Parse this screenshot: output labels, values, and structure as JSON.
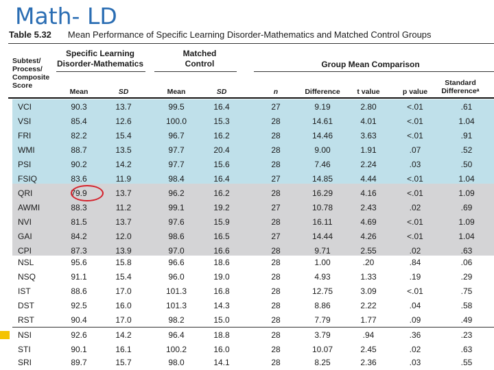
{
  "slide": {
    "title": "Math- LD"
  },
  "table": {
    "number": "Table 5.32",
    "caption": "Mean Performance of Specific Learning Disorder-Mathematics and Matched Control Groups",
    "group_headers": {
      "sld": "Specific Learning Disorder-Mathematics",
      "control": "Matched Control",
      "comparison": "Group Mean Comparison"
    },
    "columns": {
      "name": "Subtest/ Process/ Composite Score",
      "mean1": "Mean",
      "sd1": "SD",
      "mean2": "Mean",
      "sd2": "SD",
      "n": "n",
      "diff": "Difference",
      "t": "t value",
      "p": "p value",
      "std": "Standard Differenceᵃ"
    },
    "rows": [
      {
        "name": "VCI",
        "m1": "90.3",
        "sd1": "13.7",
        "m2": "99.5",
        "sd2": "16.4",
        "n": "27",
        "diff": "9.19",
        "t": "2.80",
        "p": "<.01",
        "std": ".61"
      },
      {
        "name": "VSI",
        "m1": "85.4",
        "sd1": "12.6",
        "m2": "100.0",
        "sd2": "15.3",
        "n": "28",
        "diff": "14.61",
        "t": "4.01",
        "p": "<.01",
        "std": "1.04"
      },
      {
        "name": "FRI",
        "m1": "82.2",
        "sd1": "15.4",
        "m2": "96.7",
        "sd2": "16.2",
        "n": "28",
        "diff": "14.46",
        "t": "3.63",
        "p": "<.01",
        "std": ".91"
      },
      {
        "name": "WMI",
        "m1": "88.7",
        "sd1": "13.5",
        "m2": "97.7",
        "sd2": "20.4",
        "n": "28",
        "diff": "9.00",
        "t": "1.91",
        "p": ".07",
        "std": ".52"
      },
      {
        "name": "PSI",
        "m1": "90.2",
        "sd1": "14.2",
        "m2": "97.7",
        "sd2": "15.6",
        "n": "28",
        "diff": "7.46",
        "t": "2.24",
        "p": ".03",
        "std": ".50"
      },
      {
        "name": "FSIQ",
        "m1": "83.6",
        "sd1": "11.9",
        "m2": "98.4",
        "sd2": "16.4",
        "n": "27",
        "diff": "14.85",
        "t": "4.44",
        "p": "<.01",
        "std": "1.04"
      },
      {
        "name": "QRI",
        "m1": "79.9",
        "sd1": "13.7",
        "m2": "96.2",
        "sd2": "16.2",
        "n": "28",
        "diff": "16.29",
        "t": "4.16",
        "p": "<.01",
        "std": "1.09"
      },
      {
        "name": "AWMI",
        "m1": "88.3",
        "sd1": "11.2",
        "m2": "99.1",
        "sd2": "19.2",
        "n": "27",
        "diff": "10.78",
        "t": "2.43",
        "p": ".02",
        "std": ".69"
      },
      {
        "name": "NVI",
        "m1": "81.5",
        "sd1": "13.7",
        "m2": "97.6",
        "sd2": "15.9",
        "n": "28",
        "diff": "16.11",
        "t": "4.69",
        "p": "<.01",
        "std": "1.09"
      },
      {
        "name": "GAI",
        "m1": "84.2",
        "sd1": "12.0",
        "m2": "98.6",
        "sd2": "16.5",
        "n": "27",
        "diff": "14.44",
        "t": "4.26",
        "p": "<.01",
        "std": "1.04"
      },
      {
        "name": "CPI",
        "m1": "87.3",
        "sd1": "13.9",
        "m2": "97.0",
        "sd2": "16.6",
        "n": "28",
        "diff": "9.71",
        "t": "2.55",
        "p": ".02",
        "std": ".63"
      },
      {
        "name": "NSL",
        "m1": "95.6",
        "sd1": "15.8",
        "m2": "96.6",
        "sd2": "18.6",
        "n": "28",
        "diff": "1.00",
        "t": ".20",
        "p": ".84",
        "std": ".06"
      },
      {
        "name": "NSQ",
        "m1": "91.1",
        "sd1": "15.4",
        "m2": "96.0",
        "sd2": "19.0",
        "n": "28",
        "diff": "4.93",
        "t": "1.33",
        "p": ".19",
        "std": ".29"
      },
      {
        "name": "IST",
        "m1": "88.6",
        "sd1": "17.0",
        "m2": "101.3",
        "sd2": "16.8",
        "n": "28",
        "diff": "12.75",
        "t": "3.09",
        "p": "<.01",
        "std": ".75"
      },
      {
        "name": "DST",
        "m1": "92.5",
        "sd1": "16.0",
        "m2": "101.3",
        "sd2": "14.3",
        "n": "28",
        "diff": "8.86",
        "t": "2.22",
        "p": ".04",
        "std": ".58"
      },
      {
        "name": "RST",
        "m1": "90.4",
        "sd1": "17.0",
        "m2": "98.2",
        "sd2": "15.0",
        "n": "28",
        "diff": "7.79",
        "t": "1.77",
        "p": ".09",
        "std": ".49"
      },
      {
        "name": "NSI",
        "m1": "92.6",
        "sd1": "14.2",
        "m2": "96.4",
        "sd2": "18.8",
        "n": "28",
        "diff": "3.79",
        "t": ".94",
        "p": ".36",
        "std": ".23"
      },
      {
        "name": "STI",
        "m1": "90.1",
        "sd1": "16.1",
        "m2": "100.2",
        "sd2": "16.0",
        "n": "28",
        "diff": "10.07",
        "t": "2.45",
        "p": ".02",
        "std": ".63"
      },
      {
        "name": "SRI",
        "m1": "89.7",
        "sd1": "15.7",
        "m2": "98.0",
        "sd2": "14.1",
        "n": "28",
        "diff": "8.25",
        "t": "2.36",
        "p": ".03",
        "std": ".55"
      }
    ]
  },
  "colors": {
    "blue_band": "#bfe0ea",
    "gray_band": "#d4d4d6",
    "circle": "#d4202a",
    "title": "#2a6db3"
  }
}
